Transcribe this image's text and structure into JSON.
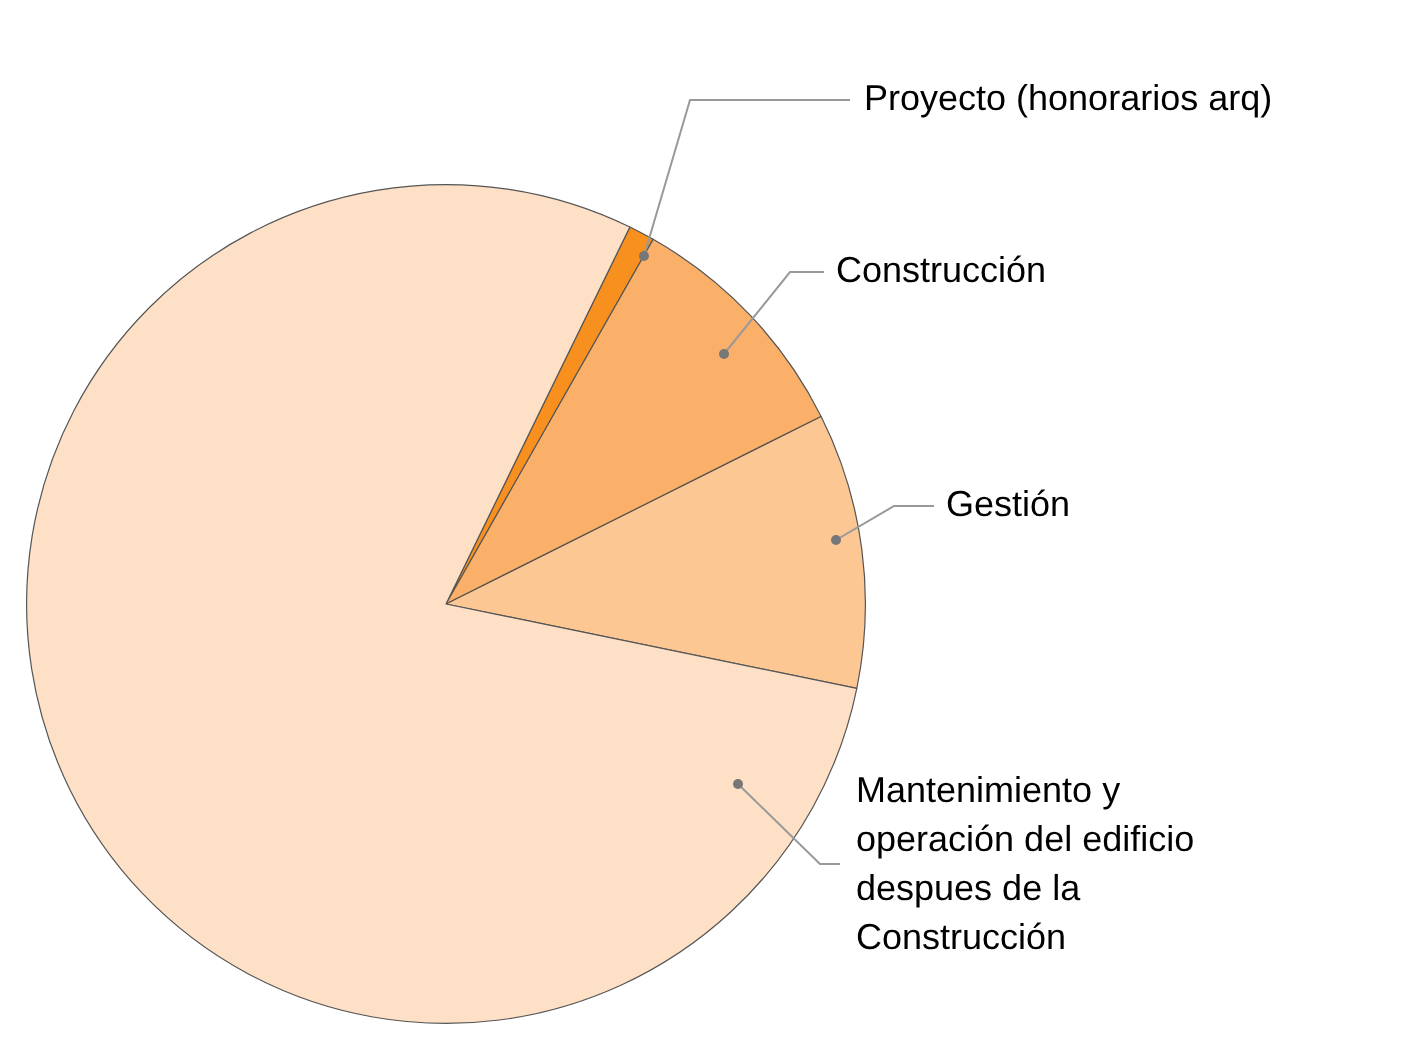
{
  "chart_data": {
    "type": "pie",
    "legend": false,
    "categories": [
      "Proyecto (honorarios arq)",
      "Construcción",
      "Gestión",
      "Mantenimiento y operación del edificio despues de la Construcción"
    ],
    "values": [
      1,
      9.4,
      10.6,
      79
    ],
    "colors": [
      "#f7901e",
      "#fbb06a",
      "#fdc794",
      "#fde0c5"
    ]
  }
}
